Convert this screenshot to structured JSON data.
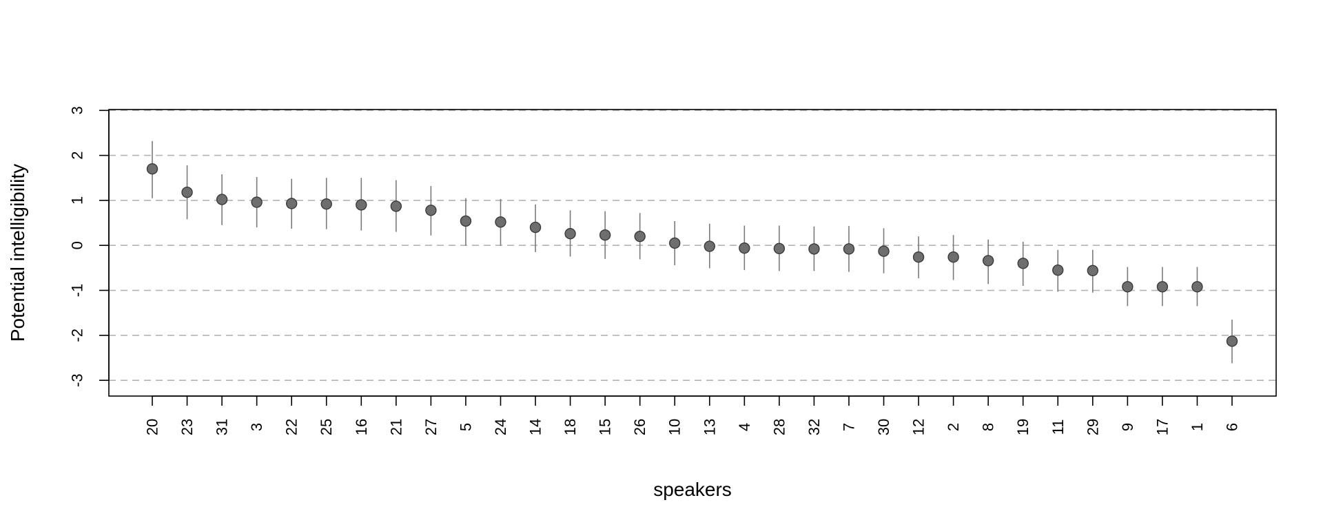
{
  "chart_data": {
    "type": "scatter",
    "xlabel": "speakers",
    "ylabel": "Potential intelligibility",
    "ylim": [
      -3.35,
      3.02
    ],
    "yticks": [
      -3,
      -2,
      -1,
      0,
      1,
      2,
      3
    ],
    "grid": "horizontal dashed at y ticks",
    "categories": [
      "20",
      "23",
      "31",
      "3",
      "22",
      "25",
      "16",
      "21",
      "27",
      "5",
      "24",
      "14",
      "18",
      "15",
      "26",
      "10",
      "13",
      "4",
      "28",
      "32",
      "7",
      "30",
      "12",
      "2",
      "8",
      "19",
      "11",
      "29",
      "9",
      "17",
      "1",
      "6"
    ],
    "values": [
      1.7,
      1.18,
      1.02,
      0.96,
      0.93,
      0.92,
      0.9,
      0.87,
      0.78,
      0.54,
      0.52,
      0.4,
      0.26,
      0.23,
      0.2,
      0.05,
      -0.02,
      -0.06,
      -0.07,
      -0.08,
      -0.08,
      -0.13,
      -0.26,
      -0.26,
      -0.34,
      -0.4,
      -0.55,
      -0.56,
      -0.92,
      -0.92,
      -0.92,
      -2.13
    ],
    "lower": [
      1.05,
      0.58,
      0.45,
      0.4,
      0.37,
      0.36,
      0.33,
      0.3,
      0.22,
      -0.01,
      -0.01,
      -0.15,
      -0.25,
      -0.3,
      -0.31,
      -0.44,
      -0.51,
      -0.55,
      -0.57,
      -0.57,
      -0.59,
      -0.62,
      -0.73,
      -0.77,
      -0.86,
      -0.9,
      -1.03,
      -1.05,
      -1.35,
      -1.35,
      -1.35,
      -2.62
    ],
    "upper": [
      2.32,
      1.78,
      1.58,
      1.52,
      1.48,
      1.5,
      1.5,
      1.45,
      1.32,
      1.05,
      1.03,
      0.91,
      0.78,
      0.76,
      0.72,
      0.54,
      0.48,
      0.44,
      0.44,
      0.42,
      0.43,
      0.38,
      0.2,
      0.23,
      0.13,
      0.08,
      -0.1,
      -0.1,
      -0.48,
      -0.48,
      -0.48,
      -1.65
    ],
    "point_color": "#6e6e6e",
    "errorbar_color": "#7a7a7a",
    "grid_color": "#b3b3b3"
  }
}
